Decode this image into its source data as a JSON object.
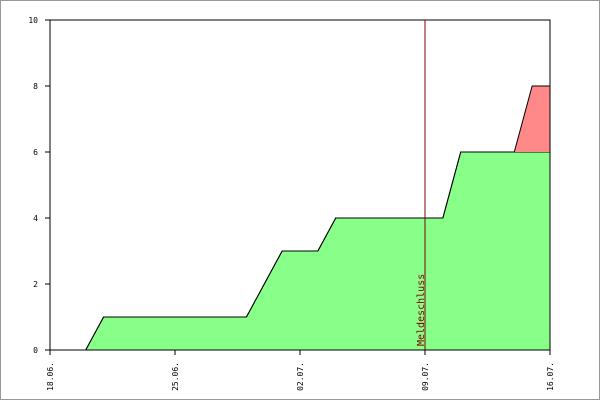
{
  "chart_data": {
    "type": "area",
    "x": [
      0,
      1,
      2,
      3,
      4,
      5,
      6,
      7,
      8,
      9,
      10,
      11,
      12,
      13,
      14,
      15,
      16,
      17,
      18,
      19,
      20,
      21,
      22,
      23,
      24,
      25,
      26,
      27,
      28
    ],
    "series": [
      {
        "color": "#88ff88",
        "values": [
          0,
          0,
          0,
          1,
          1,
          1,
          1,
          1,
          1,
          1,
          1,
          1,
          2,
          3,
          3,
          3,
          4,
          4,
          4,
          4,
          4,
          4,
          4,
          6,
          6,
          6,
          6,
          6,
          6
        ]
      },
      {
        "color": "#ff8888",
        "values": [
          0,
          0,
          0,
          0,
          0,
          0,
          0,
          0,
          0,
          0,
          0,
          0,
          0,
          0,
          0,
          0,
          0,
          0,
          0,
          0,
          0,
          0,
          0,
          0,
          0,
          0,
          0,
          2,
          2
        ]
      }
    ],
    "stacked": true,
    "xlim": [
      0,
      28
    ],
    "xticks": [
      {
        "value": 0,
        "label": "18.06."
      },
      {
        "value": 7,
        "label": "25.06."
      },
      {
        "value": 14,
        "label": "02.07."
      },
      {
        "value": 21,
        "label": "09.07."
      },
      {
        "value": 28,
        "label": "16.07."
      }
    ],
    "ylim": [
      0,
      10
    ],
    "yticks": [
      0,
      2,
      4,
      6,
      8,
      10
    ],
    "annotation": {
      "x": 21,
      "label": "Meldeschluss",
      "color": "#800000"
    }
  }
}
